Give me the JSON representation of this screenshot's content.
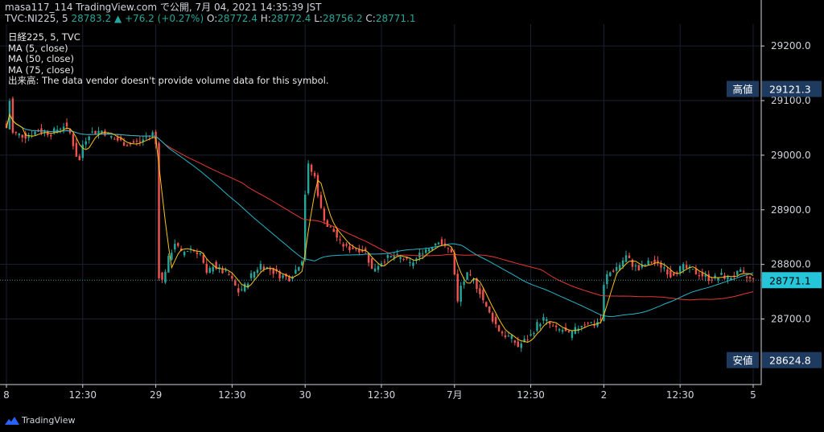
{
  "header": {
    "line1": "masa117_114 TradingView.com で公開, 7月 04, 2021 14:35:39 JST",
    "symbol": "TVC:NI225, 5",
    "last": "28783.2",
    "arrow": "▲",
    "change": "+76.2 (+0.27%)",
    "o_label": "O:",
    "o_value": "28772.4",
    "h_label": "H:",
    "h_value": "28772.4",
    "l_label": "L:",
    "l_value": "28756.2",
    "c_label": "C:",
    "c_value": "28771.1"
  },
  "legend": [
    "日経225, 5, TVC",
    "MA (5, close)",
    "MA (50, close)",
    "MA (75, close)",
    "出来高: The data vendor doesn't provide volume data for this symbol."
  ],
  "brand": {
    "name": "TradingView"
  },
  "colors": {
    "background": "#000000",
    "up": "#26a69a",
    "down": "#ef5350",
    "ma5": "#f5c518",
    "ma50": "#26b5c8",
    "ma75": "#e53935",
    "label_bg": "#1e3a5f",
    "current_bg": "#26c6da"
  },
  "chart_data": {
    "type": "candlestick",
    "ylim": [
      28580,
      29240
    ],
    "yticks": [
      29200,
      29100,
      29000,
      28900,
      28800,
      28700
    ],
    "ytick_labels": [
      "29200.0",
      "29100.0",
      "29000.0",
      "28900.0",
      "28800.0",
      "28700.0"
    ],
    "xlim": [
      0,
      235
    ],
    "xticks": [
      {
        "i": 0,
        "label": "8"
      },
      {
        "i": 24,
        "label": "12:30"
      },
      {
        "i": 47,
        "label": "29"
      },
      {
        "i": 71,
        "label": "12:30"
      },
      {
        "i": 94,
        "label": "30"
      },
      {
        "i": 118,
        "label": "12:30"
      },
      {
        "i": 141,
        "label": "7月"
      },
      {
        "i": 165,
        "label": "12:30"
      },
      {
        "i": 188,
        "label": "2"
      },
      {
        "i": 212,
        "label": "12:30"
      },
      {
        "i": 235,
        "label": "5"
      }
    ],
    "high_label": {
      "text": "高値",
      "value": 29121.3,
      "value_text": "29121.3"
    },
    "low_label": {
      "text": "安値",
      "value": 28624.8,
      "value_text": "28624.8"
    },
    "current": {
      "value": 28771.1,
      "value_text": "28771.1"
    },
    "anchors": [
      [
        0,
        29050
      ],
      [
        1,
        29100
      ],
      [
        2,
        29040
      ],
      [
        6,
        29035
      ],
      [
        10,
        29045
      ],
      [
        14,
        29040
      ],
      [
        18,
        29055
      ],
      [
        20,
        29040
      ],
      [
        22,
        29000
      ],
      [
        23,
        28990
      ],
      [
        24,
        29020
      ],
      [
        26,
        29040
      ],
      [
        30,
        29045
      ],
      [
        34,
        29030
      ],
      [
        38,
        29020
      ],
      [
        42,
        29025
      ],
      [
        46,
        29040
      ],
      [
        47,
        29020
      ],
      [
        48,
        28780
      ],
      [
        49,
        28770
      ],
      [
        51,
        28810
      ],
      [
        53,
        28840
      ],
      [
        55,
        28820
      ],
      [
        58,
        28830
      ],
      [
        61,
        28820
      ],
      [
        63,
        28780
      ],
      [
        65,
        28800
      ],
      [
        67,
        28790
      ],
      [
        70,
        28780
      ],
      [
        73,
        28750
      ],
      [
        75,
        28760
      ],
      [
        77,
        28780
      ],
      [
        80,
        28800
      ],
      [
        83,
        28790
      ],
      [
        86,
        28780
      ],
      [
        89,
        28775
      ],
      [
        91,
        28790
      ],
      [
        93,
        28810
      ],
      [
        94,
        28930
      ],
      [
        95,
        28980
      ],
      [
        97,
        28960
      ],
      [
        99,
        28900
      ],
      [
        101,
        28870
      ],
      [
        103,
        28860
      ],
      [
        105,
        28840
      ],
      [
        107,
        28830
      ],
      [
        110,
        28830
      ],
      [
        113,
        28825
      ],
      [
        115,
        28790
      ],
      [
        117,
        28800
      ],
      [
        119,
        28810
      ],
      [
        122,
        28815
      ],
      [
        125,
        28810
      ],
      [
        127,
        28800
      ],
      [
        129,
        28810
      ],
      [
        131,
        28825
      ],
      [
        133,
        28830
      ],
      [
        136,
        28845
      ],
      [
        138,
        28830
      ],
      [
        140,
        28825
      ],
      [
        141,
        28780
      ],
      [
        142,
        28730
      ],
      [
        143,
        28760
      ],
      [
        145,
        28780
      ],
      [
        147,
        28770
      ],
      [
        149,
        28750
      ],
      [
        151,
        28720
      ],
      [
        153,
        28700
      ],
      [
        155,
        28680
      ],
      [
        157,
        28670
      ],
      [
        159,
        28665
      ],
      [
        161,
        28650
      ],
      [
        163,
        28660
      ],
      [
        165,
        28670
      ],
      [
        167,
        28690
      ],
      [
        169,
        28700
      ],
      [
        171,
        28690
      ],
      [
        173,
        28680
      ],
      [
        175,
        28680
      ],
      [
        177,
        28670
      ],
      [
        179,
        28680
      ],
      [
        181,
        28690
      ],
      [
        183,
        28695
      ],
      [
        185,
        28690
      ],
      [
        187,
        28700
      ],
      [
        188,
        28760
      ],
      [
        189,
        28780
      ],
      [
        191,
        28790
      ],
      [
        193,
        28800
      ],
      [
        195,
        28815
      ],
      [
        197,
        28800
      ],
      [
        199,
        28790
      ],
      [
        201,
        28800
      ],
      [
        203,
        28805
      ],
      [
        205,
        28800
      ],
      [
        207,
        28795
      ],
      [
        209,
        28780
      ],
      [
        211,
        28790
      ],
      [
        213,
        28795
      ],
      [
        215,
        28790
      ],
      [
        217,
        28785
      ],
      [
        219,
        28780
      ],
      [
        221,
        28775
      ],
      [
        223,
        28775
      ],
      [
        225,
        28780
      ],
      [
        227,
        28775
      ],
      [
        229,
        28780
      ],
      [
        231,
        28785
      ],
      [
        233,
        28775
      ],
      [
        235,
        28771
      ]
    ]
  }
}
